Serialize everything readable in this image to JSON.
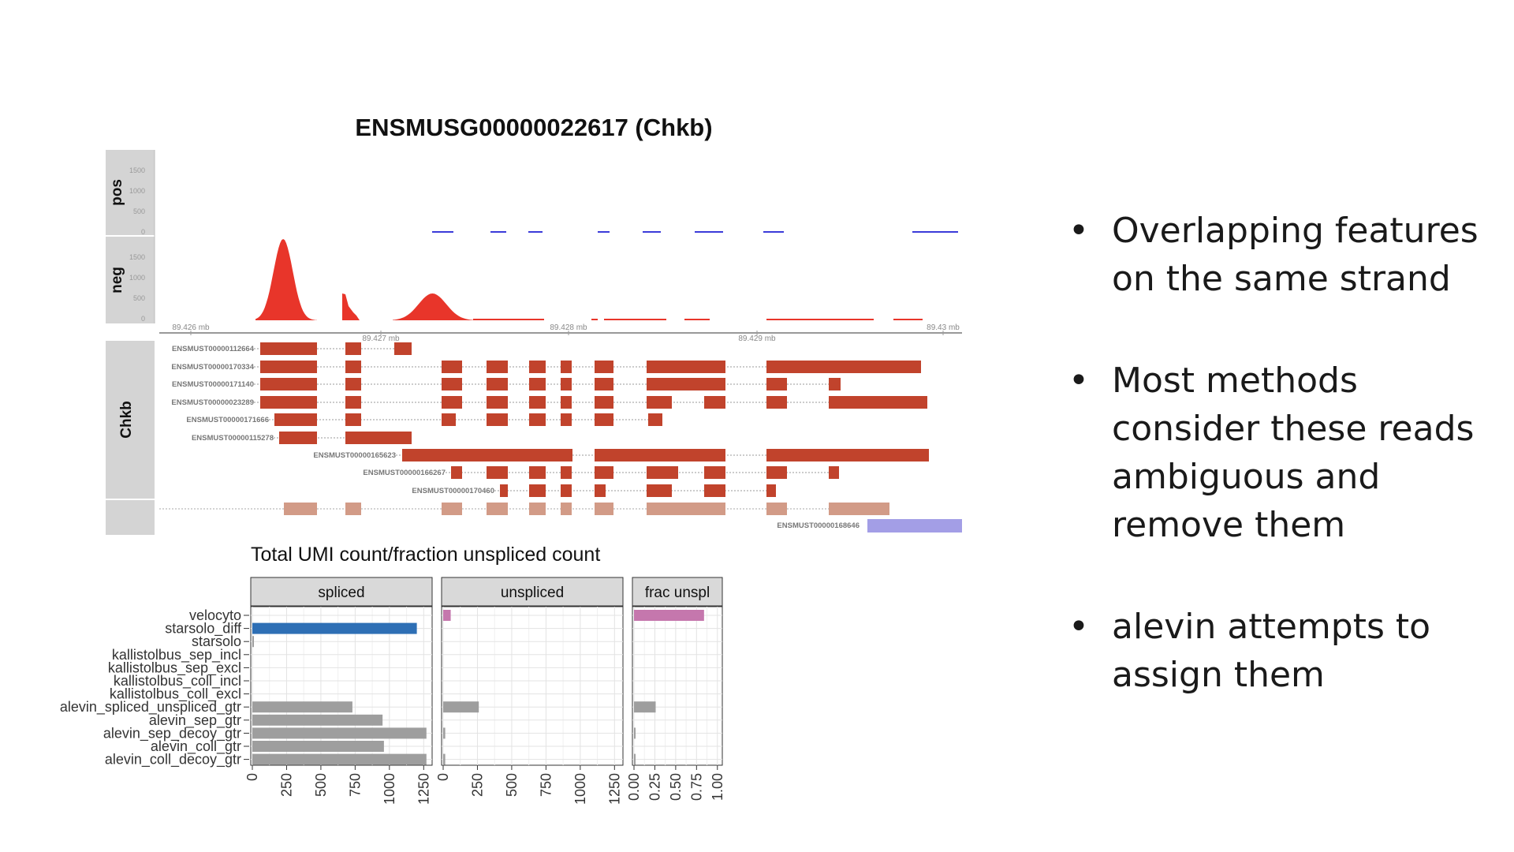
{
  "genome_plot": {
    "title": "ENSMUSG00000022617 (Chkb)",
    "coverage_tracks": [
      {
        "label": "pos",
        "ticks": [
          "1500",
          "1000",
          "500",
          "0"
        ]
      },
      {
        "label": "neg",
        "ticks": [
          "1500",
          "1000",
          "500",
          "0"
        ]
      }
    ],
    "axis_ticks": [
      "89.426 mb",
      "89.427 mb",
      "89.428 mb",
      "89.429 mb",
      "89.43 mb"
    ],
    "gene_label": "Chkb",
    "transcripts": [
      "ENSMUST00000112664",
      "ENSMUST00000170334",
      "ENSMUST00000171140",
      "ENSMUST00000023289",
      "ENSMUST00000171666",
      "ENSMUST00000115278",
      "ENSMUST00000165623",
      "ENSMUST00000166267",
      "ENSMUST00000170460",
      "ENSMUST00000168646"
    ],
    "colors": {
      "neg_coverage": "#e8352a",
      "pos_coverage": "#3b3bd9",
      "exon": "#c1432c",
      "exon_light": "#d29b87",
      "other_gene": "#a39ee6"
    }
  },
  "chart_data": {
    "type": "bar",
    "title": "Total UMI count/fraction unspliced count",
    "categories": [
      "velocyto",
      "starsolo_diff",
      "starsolo",
      "kallistolbus_sep_incl",
      "kallistolbus_sep_excl",
      "kallistolbus_coll_incl",
      "kallistolbus_coll_excl",
      "alevin_spliced_unspliced_gtr",
      "alevin_sep_gtr",
      "alevin_sep_decoy_gtr",
      "alevin_coll_gtr",
      "alevin_coll_decoy_gtr"
    ],
    "panels": [
      {
        "name": "spliced",
        "xlim": [
          0,
          1300
        ],
        "ticks": [
          "0",
          "250",
          "500",
          "750",
          "1000",
          "1250"
        ],
        "values": [
          0,
          1200,
          5,
          0,
          0,
          0,
          0,
          730,
          950,
          1270,
          960,
          1270
        ]
      },
      {
        "name": "unspliced",
        "xlim": [
          0,
          1300
        ],
        "ticks": [
          "0",
          "250",
          "500",
          "750",
          "1000",
          "1250"
        ],
        "values": [
          55,
          0,
          0,
          0,
          0,
          0,
          0,
          260,
          0,
          15,
          0,
          15
        ]
      },
      {
        "name": "frac unspl",
        "xlim": [
          0,
          1.04
        ],
        "ticks": [
          "0.00",
          "0.25",
          "0.50",
          "0.75",
          "1.00"
        ],
        "values": [
          0.84,
          0,
          0,
          0,
          0,
          0,
          0,
          0.26,
          0,
          0.01,
          0,
          0.01
        ]
      }
    ],
    "colors": {
      "starsolo_diff": "#2e6fb5",
      "velocyto": "#c577ad",
      "alevin": "#9e9e9e"
    }
  },
  "bullets": [
    {
      "symbol": "•",
      "text": "Overlapping features on the same strand"
    },
    {
      "symbol": "•",
      "text": "Most methods consider these reads ambiguous and remove them"
    },
    {
      "symbol": "•",
      "text": "alevin attempts to assign them"
    }
  ]
}
